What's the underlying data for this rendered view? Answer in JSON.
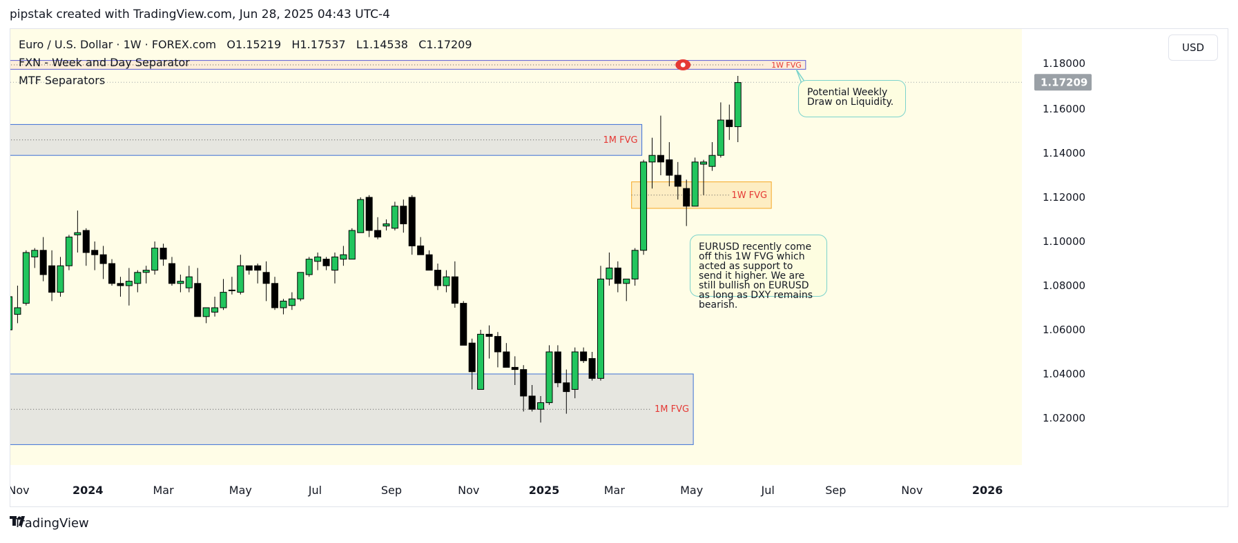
{
  "header": {
    "credit": "pipstak created with TradingView.com, Jun 28, 2025 04:43 UTC-4"
  },
  "legend": {
    "symbol_line": "Euro / U.S. Dollar · 1W · FOREX.com",
    "open": "O1.15219",
    "high": "H1.17537",
    "low": "L1.14538",
    "close": "C1.17209",
    "indicator1": "FXN - Week and Day Separator",
    "indicator2": "MTF Separators"
  },
  "currency_button": "USD",
  "footer": {
    "brand": "TradingView"
  },
  "colors": {
    "background": "#fffde7",
    "bull": "#22c55e",
    "bear": "#000000",
    "zone_fill": "#e6e6e0",
    "zone_border": "#3b6fd6",
    "fvg_orange": "#f5a623",
    "label_red": "#e53935",
    "note_border": "#7ad3cc"
  },
  "annotations": {
    "note_weekly": "Potential Weekly Draw on Liquidity.",
    "note_eurusd": "EURUSD recently come off this 1W FVG which acted as support to send it higher. We are still bullish on EURUSD as long as DXY remains bearish."
  },
  "chart_data": {
    "type": "candlestick",
    "title": "Euro / U.S. Dollar · 1W · FOREX.com",
    "ylim": [
      1.005,
      1.19
    ],
    "yticks": [
      1.02,
      1.04,
      1.06,
      1.08,
      1.1,
      1.12,
      1.14,
      1.16
    ],
    "ytick_labels": [
      "1.02000",
      "1.04000",
      "1.06000",
      "1.08000",
      "1.10000",
      "1.12000",
      "1.14000",
      "1.16000"
    ],
    "partial_top_tick": "1.18000",
    "last_price": 1.17209,
    "last_price_label": "1.17209",
    "grid": false,
    "xticks": [
      {
        "label": "Nov",
        "week": 0,
        "bold": false
      },
      {
        "label": "2024",
        "week": 9.2,
        "bold": true
      },
      {
        "label": "Mar",
        "week": 18,
        "bold": false
      },
      {
        "label": "May",
        "week": 27,
        "bold": false
      },
      {
        "label": "Jul",
        "week": 35.7,
        "bold": false
      },
      {
        "label": "Sep",
        "week": 44.6,
        "bold": false
      },
      {
        "label": "Nov",
        "week": 53.6,
        "bold": false
      },
      {
        "label": "2025",
        "week": 62.4,
        "bold": true
      },
      {
        "label": "Mar",
        "week": 70.6,
        "bold": false
      },
      {
        "label": "May",
        "week": 79.6,
        "bold": false
      },
      {
        "label": "Jul",
        "week": 88.5,
        "bold": false
      },
      {
        "label": "Sep",
        "week": 96.4,
        "bold": false
      },
      {
        "label": "Nov",
        "week": 105.3,
        "bold": false
      },
      {
        "label": "2026",
        "week": 114.1,
        "bold": true
      }
    ],
    "candles": [
      {
        "o": 1.06,
        "h": 1.075,
        "l": 1.055,
        "c": 1.075
      },
      {
        "o": 1.067,
        "h": 1.08,
        "l": 1.063,
        "c": 1.07
      },
      {
        "o": 1.072,
        "h": 1.096,
        "l": 1.071,
        "c": 1.095
      },
      {
        "o": 1.093,
        "h": 1.097,
        "l": 1.088,
        "c": 1.096
      },
      {
        "o": 1.096,
        "h": 1.102,
        "l": 1.082,
        "c": 1.085
      },
      {
        "o": 1.089,
        "h": 1.096,
        "l": 1.073,
        "c": 1.077
      },
      {
        "o": 1.077,
        "h": 1.093,
        "l": 1.075,
        "c": 1.089
      },
      {
        "o": 1.089,
        "h": 1.103,
        "l": 1.087,
        "c": 1.102
      },
      {
        "o": 1.103,
        "h": 1.114,
        "l": 1.095,
        "c": 1.104
      },
      {
        "o": 1.105,
        "h": 1.106,
        "l": 1.089,
        "c": 1.095
      },
      {
        "o": 1.096,
        "h": 1.1,
        "l": 1.087,
        "c": 1.094
      },
      {
        "o": 1.094,
        "h": 1.098,
        "l": 1.083,
        "c": 1.09
      },
      {
        "o": 1.09,
        "h": 1.092,
        "l": 1.08,
        "c": 1.081
      },
      {
        "o": 1.081,
        "h": 1.084,
        "l": 1.075,
        "c": 1.08
      },
      {
        "o": 1.08,
        "h": 1.088,
        "l": 1.071,
        "c": 1.082
      },
      {
        "o": 1.081,
        "h": 1.087,
        "l": 1.077,
        "c": 1.086
      },
      {
        "o": 1.086,
        "h": 1.089,
        "l": 1.081,
        "c": 1.087
      },
      {
        "o": 1.087,
        "h": 1.1,
        "l": 1.085,
        "c": 1.097
      },
      {
        "o": 1.097,
        "h": 1.099,
        "l": 1.089,
        "c": 1.092
      },
      {
        "o": 1.09,
        "h": 1.093,
        "l": 1.08,
        "c": 1.081
      },
      {
        "o": 1.081,
        "h": 1.085,
        "l": 1.077,
        "c": 1.082
      },
      {
        "o": 1.079,
        "h": 1.089,
        "l": 1.077,
        "c": 1.084
      },
      {
        "o": 1.081,
        "h": 1.088,
        "l": 1.066,
        "c": 1.066
      },
      {
        "o": 1.066,
        "h": 1.069,
        "l": 1.063,
        "c": 1.07
      },
      {
        "o": 1.068,
        "h": 1.075,
        "l": 1.066,
        "c": 1.07
      },
      {
        "o": 1.07,
        "h": 1.083,
        "l": 1.069,
        "c": 1.077
      },
      {
        "o": 1.078,
        "h": 1.084,
        "l": 1.076,
        "c": 1.078
      },
      {
        "o": 1.077,
        "h": 1.094,
        "l": 1.076,
        "c": 1.089
      },
      {
        "o": 1.089,
        "h": 1.089,
        "l": 1.085,
        "c": 1.087
      },
      {
        "o": 1.089,
        "h": 1.09,
        "l": 1.081,
        "c": 1.087
      },
      {
        "o": 1.086,
        "h": 1.091,
        "l": 1.073,
        "c": 1.081
      },
      {
        "o": 1.081,
        "h": 1.084,
        "l": 1.069,
        "c": 1.07
      },
      {
        "o": 1.07,
        "h": 1.074,
        "l": 1.067,
        "c": 1.073
      },
      {
        "o": 1.071,
        "h": 1.077,
        "l": 1.069,
        "c": 1.074
      },
      {
        "o": 1.074,
        "h": 1.086,
        "l": 1.073,
        "c": 1.086
      },
      {
        "o": 1.085,
        "h": 1.093,
        "l": 1.084,
        "c": 1.092
      },
      {
        "o": 1.091,
        "h": 1.095,
        "l": 1.087,
        "c": 1.093
      },
      {
        "o": 1.092,
        "h": 1.093,
        "l": 1.087,
        "c": 1.089
      },
      {
        "o": 1.087,
        "h": 1.095,
        "l": 1.081,
        "c": 1.093
      },
      {
        "o": 1.092,
        "h": 1.098,
        "l": 1.089,
        "c": 1.094
      },
      {
        "o": 1.092,
        "h": 1.106,
        "l": 1.092,
        "c": 1.105
      },
      {
        "o": 1.104,
        "h": 1.12,
        "l": 1.104,
        "c": 1.119
      },
      {
        "o": 1.12,
        "h": 1.121,
        "l": 1.102,
        "c": 1.105
      },
      {
        "o": 1.105,
        "h": 1.111,
        "l": 1.101,
        "c": 1.102
      },
      {
        "o": 1.107,
        "h": 1.11,
        "l": 1.105,
        "c": 1.108
      },
      {
        "o": 1.106,
        "h": 1.118,
        "l": 1.105,
        "c": 1.116
      },
      {
        "o": 1.116,
        "h": 1.119,
        "l": 1.104,
        "c": 1.108
      },
      {
        "o": 1.12,
        "h": 1.121,
        "l": 1.094,
        "c": 1.098
      },
      {
        "o": 1.098,
        "h": 1.102,
        "l": 1.094,
        "c": 1.094
      },
      {
        "o": 1.094,
        "h": 1.096,
        "l": 1.087,
        "c": 1.087
      },
      {
        "o": 1.087,
        "h": 1.09,
        "l": 1.078,
        "c": 1.08
      },
      {
        "o": 1.08,
        "h": 1.087,
        "l": 1.077,
        "c": 1.084
      },
      {
        "o": 1.084,
        "h": 1.091,
        "l": 1.07,
        "c": 1.072
      },
      {
        "o": 1.072,
        "h": 1.073,
        "l": 1.053,
        "c": 1.053
      },
      {
        "o": 1.054,
        "h": 1.056,
        "l": 1.033,
        "c": 1.041
      },
      {
        "o": 1.033,
        "h": 1.06,
        "l": 1.033,
        "c": 1.058
      },
      {
        "o": 1.058,
        "h": 1.062,
        "l": 1.047,
        "c": 1.057
      },
      {
        "o": 1.057,
        "h": 1.059,
        "l": 1.043,
        "c": 1.05
      },
      {
        "o": 1.05,
        "h": 1.054,
        "l": 1.043,
        "c": 1.043
      },
      {
        "o": 1.043,
        "h": 1.048,
        "l": 1.035,
        "c": 1.042
      },
      {
        "o": 1.042,
        "h": 1.044,
        "l": 1.023,
        "c": 1.03
      },
      {
        "o": 1.03,
        "h": 1.035,
        "l": 1.023,
        "c": 1.024
      },
      {
        "o": 1.024,
        "h": 1.03,
        "l": 1.018,
        "c": 1.027
      },
      {
        "o": 1.027,
        "h": 1.053,
        "l": 1.026,
        "c": 1.05
      },
      {
        "o": 1.05,
        "h": 1.053,
        "l": 1.034,
        "c": 1.036
      },
      {
        "o": 1.036,
        "h": 1.042,
        "l": 1.022,
        "c": 1.032
      },
      {
        "o": 1.033,
        "h": 1.052,
        "l": 1.029,
        "c": 1.05
      },
      {
        "o": 1.05,
        "h": 1.052,
        "l": 1.045,
        "c": 1.046
      },
      {
        "o": 1.047,
        "h": 1.05,
        "l": 1.037,
        "c": 1.038
      },
      {
        "o": 1.038,
        "h": 1.089,
        "l": 1.037,
        "c": 1.083
      },
      {
        "o": 1.083,
        "h": 1.095,
        "l": 1.08,
        "c": 1.088
      },
      {
        "o": 1.088,
        "h": 1.091,
        "l": 1.077,
        "c": 1.081
      },
      {
        "o": 1.081,
        "h": 1.083,
        "l": 1.073,
        "c": 1.083
      },
      {
        "o": 1.083,
        "h": 1.097,
        "l": 1.08,
        "c": 1.096
      },
      {
        "o": 1.096,
        "h": 1.137,
        "l": 1.094,
        "c": 1.136
      },
      {
        "o": 1.136,
        "h": 1.147,
        "l": 1.124,
        "c": 1.139
      },
      {
        "o": 1.139,
        "h": 1.157,
        "l": 1.13,
        "c": 1.136
      },
      {
        "o": 1.137,
        "h": 1.145,
        "l": 1.125,
        "c": 1.13
      },
      {
        "o": 1.13,
        "h": 1.136,
        "l": 1.119,
        "c": 1.125
      },
      {
        "o": 1.124,
        "h": 1.128,
        "l": 1.107,
        "c": 1.116
      },
      {
        "o": 1.116,
        "h": 1.138,
        "l": 1.116,
        "c": 1.136
      },
      {
        "o": 1.135,
        "h": 1.137,
        "l": 1.121,
        "c": 1.136
      },
      {
        "o": 1.134,
        "h": 1.145,
        "l": 1.132,
        "c": 1.139
      },
      {
        "o": 1.139,
        "h": 1.163,
        "l": 1.138,
        "c": 1.155
      },
      {
        "o": 1.155,
        "h": 1.162,
        "l": 1.146,
        "c": 1.152
      },
      {
        "o": 1.152,
        "h": 1.175,
        "l": 1.145,
        "c": 1.172
      }
    ],
    "zones": [
      {
        "name": "1M FVG upper",
        "label": "1M FVG",
        "x0": -2,
        "x1": 73.8,
        "y0": 1.139,
        "y1": 1.153,
        "mid": 1.146,
        "style": "blue"
      },
      {
        "name": "1M FVG lower",
        "label": "1M FVG",
        "x0": -2,
        "x1": 79.8,
        "y0": 1.008,
        "y1": 1.04,
        "mid": 1.024,
        "style": "blue"
      },
      {
        "name": "1W FVG middle",
        "label": "1W FVG",
        "x0": 72.6,
        "x1": 88.9,
        "y0": 1.115,
        "y1": 1.127,
        "mid": 1.121,
        "style": "orange"
      },
      {
        "name": "1W FVG top",
        "label": "1W FVG",
        "x0": -2,
        "x1": 92.9,
        "y0": 1.178,
        "y1": 1.182,
        "mid": 1.18,
        "style": "red"
      }
    ]
  }
}
